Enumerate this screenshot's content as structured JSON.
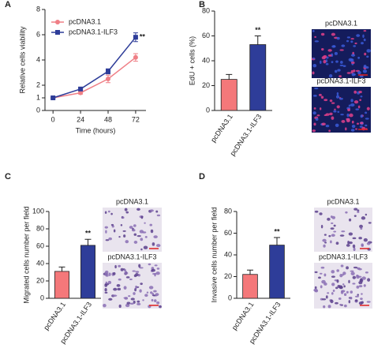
{
  "chart_data": [
    {
      "type": "line",
      "panel": "A",
      "xlabel": "Time (hours)",
      "ylabel": "Relative cells viability",
      "x": [
        0,
        24,
        48,
        72
      ],
      "xlim": [
        -7,
        81
      ],
      "xticks": [
        0,
        24,
        48,
        72
      ],
      "ylim": [
        0,
        8
      ],
      "yticks": [
        0,
        1,
        2,
        4,
        6,
        8
      ],
      "legend": "top-left",
      "series": [
        {
          "name": "pcDNA3.1",
          "color": "#ef7f86",
          "marker": "circle",
          "values": [
            1,
            1.4,
            2.5,
            4.2
          ],
          "errors": [
            0.05,
            0.1,
            0.3,
            0.3
          ]
        },
        {
          "name": "pcDNA3.1-ILF3",
          "color": "#2e3d99",
          "marker": "square",
          "values": [
            1,
            1.7,
            3.1,
            5.8
          ],
          "errors": [
            0.05,
            0.1,
            0.2,
            0.35
          ]
        }
      ],
      "annotation": "**"
    },
    {
      "type": "bar",
      "panel": "B",
      "ylabel": "EdU + cells (%)",
      "categories": [
        "pcDNA3.1",
        "pcDNA3.1-ILF3"
      ],
      "values": [
        25,
        53
      ],
      "errors": [
        4,
        7
      ],
      "colors": [
        "#f4787a",
        "#2e3d99"
      ],
      "ylim": [
        0,
        80
      ],
      "yticks": [
        0,
        20,
        40,
        60,
        80
      ],
      "annotation": "**",
      "image_labels": [
        "pcDNA3.1",
        "pcDNA3.1-ILF3"
      ]
    },
    {
      "type": "bar",
      "panel": "C",
      "ylabel": "Migrated cells number per field",
      "categories": [
        "pcDNA3.1",
        "pcDNA3.1-ILF3"
      ],
      "values": [
        31,
        61
      ],
      "errors": [
        5,
        7
      ],
      "colors": [
        "#f4787a",
        "#2e3d99"
      ],
      "ylim": [
        0,
        100
      ],
      "yticks": [
        0,
        20,
        40,
        60,
        80,
        100
      ],
      "annotation": "**",
      "image_labels": [
        "pcDNA3.1",
        "pcDNA3.1-ILF3"
      ]
    },
    {
      "type": "bar",
      "panel": "D",
      "ylabel": "Invasive cells number per field",
      "categories": [
        "pcDNA3.1",
        "pcDNA3.1-ILF3"
      ],
      "values": [
        22,
        49
      ],
      "errors": [
        4,
        7
      ],
      "colors": [
        "#f4787a",
        "#2e3d99"
      ],
      "ylim": [
        0,
        80
      ],
      "yticks": [
        0,
        20,
        40,
        60,
        80
      ],
      "annotation": "**",
      "image_labels": [
        "pcDNA3.1",
        "pcDNA3.1-ILF3"
      ]
    }
  ]
}
